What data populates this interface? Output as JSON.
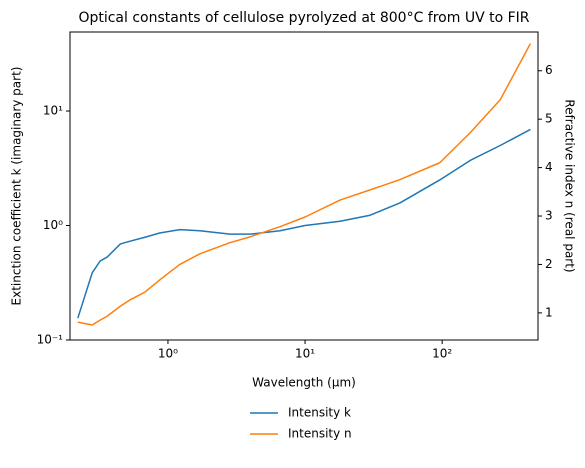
{
  "chart_data": {
    "type": "line",
    "title": "Optical constants of cellulose pyrolyzed at 800°C from UV to FIR",
    "x_label": "Wavelength (μm)",
    "y_label": "Extinction coefficient k (imaginary part)",
    "y2_label": "Refractive index n (real part)",
    "xscale": "log",
    "yscale": "log",
    "x": [
      0.22,
      0.28,
      0.32,
      0.36,
      0.45,
      0.53,
      0.68,
      0.87,
      1.22,
      1.71,
      2.83,
      3.97,
      6.57,
      10,
      18,
      29.8,
      49,
      96,
      160,
      265,
      440
    ],
    "series": [
      {
        "name": "Intensity k",
        "color": "#1f77b4",
        "axis": "y",
        "values": [
          0.155,
          0.385,
          0.49,
          0.53,
          0.69,
          0.73,
          0.79,
          0.86,
          0.92,
          0.9,
          0.84,
          0.84,
          0.9,
          1.0,
          1.09,
          1.23,
          1.57,
          2.5,
          3.7,
          5.0,
          6.9
        ]
      },
      {
        "name": "Intensity n",
        "color": "#ff7f0e",
        "axis": "y2",
        "values": [
          0.81,
          0.75,
          0.85,
          0.93,
          1.14,
          1.27,
          1.43,
          1.68,
          2.0,
          2.22,
          2.45,
          2.57,
          2.78,
          2.98,
          3.33,
          3.54,
          3.75,
          4.1,
          4.72,
          5.4,
          6.56
        ]
      }
    ],
    "xlim": [
      0.193,
      500
    ],
    "xticks": [
      {
        "value": 1,
        "label": "10⁰"
      },
      {
        "value": 10,
        "label": "10¹"
      },
      {
        "value": 100,
        "label": "10²"
      }
    ],
    "ylim": [
      0.1,
      49
    ],
    "yticks": [
      {
        "value": 0.1,
        "label": "10⁻¹"
      },
      {
        "value": 1,
        "label": "10⁰"
      },
      {
        "value": 10,
        "label": "10¹"
      }
    ],
    "y2lim": [
      0.44,
      6.8
    ],
    "y2ticks": [
      1,
      2,
      3,
      4,
      5,
      6
    ],
    "legend": "bottom"
  }
}
